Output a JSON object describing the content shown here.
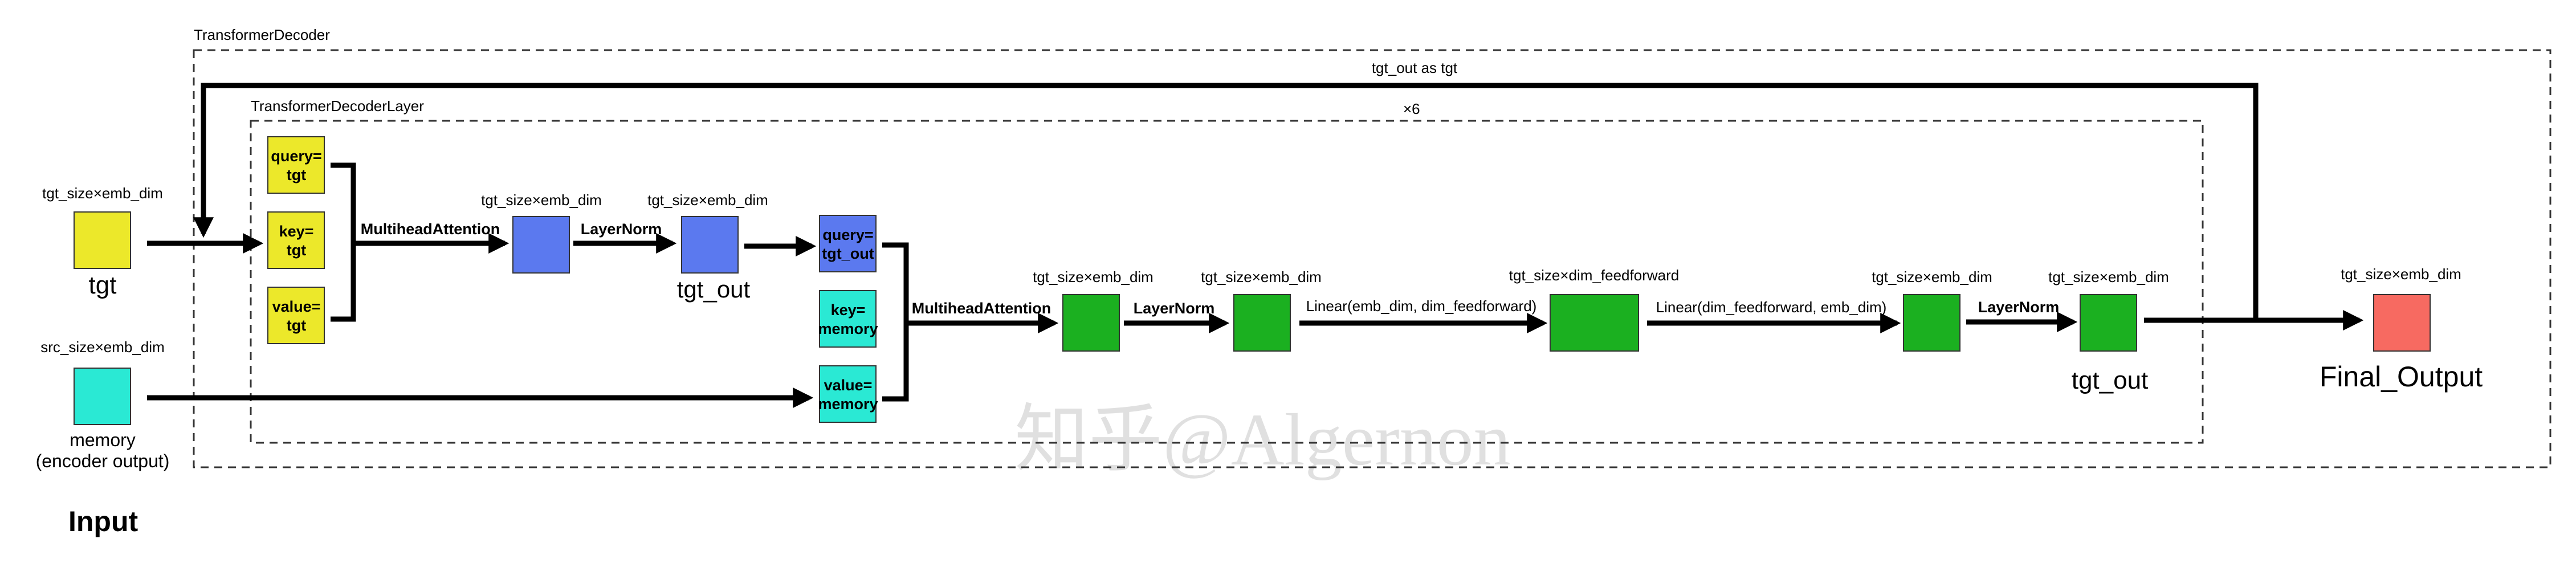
{
  "colors": {
    "yellow": "#ece82a",
    "blue": "#5b79ef",
    "cyan": "#2ae9d4",
    "green": "#1bb020",
    "red": "#f76a61"
  },
  "labels": {
    "decoder_title": "TransformerDecoder",
    "layer_title": "TransformerDecoderLayer",
    "feedback": "tgt_out as tgt",
    "repeat": "×6",
    "section_input": "Input",
    "watermark": "知乎@Algernon"
  },
  "inputs": {
    "tgt_dim": "tgt_size×emb_dim",
    "tgt_label": "tgt",
    "memory_dim": "src_size×emb_dim",
    "memory_label_1": "memory",
    "memory_label_2": "(encoder output)"
  },
  "attn1": {
    "query_1": "query=",
    "query_2": "tgt",
    "key_1": "key=",
    "key_2": "tgt",
    "value_1": "value=",
    "value_2": "tgt",
    "op": "MultiheadAttention",
    "out_dim": "tgt_size×emb_dim"
  },
  "norm1": {
    "op": "LayerNorm",
    "out_dim": "tgt_size×emb_dim",
    "out_label": "tgt_out"
  },
  "attn2": {
    "query_1": "query=",
    "query_2": "tgt_out",
    "key_1": "key=",
    "key_2": "memory",
    "value_1": "value=",
    "value_2": "memory",
    "op": "MultiheadAttention",
    "out_dim": "tgt_size×emb_dim"
  },
  "norm2": {
    "op": "LayerNorm",
    "out_dim": "tgt_size×emb_dim"
  },
  "ff1": {
    "op": "Linear(emb_dim, dim_feedforward)",
    "out_dim": "tgt_size×dim_feedforward"
  },
  "ff2": {
    "op": "Linear(dim_feedforward, emb_dim)",
    "out_dim": "tgt_size×emb_dim"
  },
  "norm3": {
    "op": "LayerNorm",
    "out_dim": "tgt_size×emb_dim",
    "out_label": "tgt_out"
  },
  "final": {
    "dim": "tgt_size×emb_dim",
    "label": "Final_Output"
  }
}
